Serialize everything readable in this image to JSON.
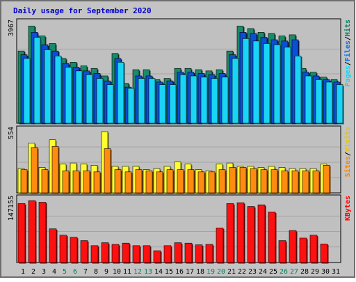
{
  "chart_data": {
    "type": "bar",
    "title": "Daily usage for September 2020",
    "categories": [
      "1",
      "2",
      "3",
      "4",
      "5",
      "6",
      "7",
      "8",
      "9",
      "10",
      "11",
      "12",
      "13",
      "14",
      "15",
      "16",
      "17",
      "18",
      "19",
      "20",
      "21",
      "22",
      "23",
      "24",
      "25",
      "26",
      "27",
      "28",
      "29",
      "30",
      "31"
    ],
    "weekend_days": [
      "5",
      "6",
      "12",
      "13",
      "19",
      "20",
      "26",
      "27"
    ],
    "panels": [
      {
        "id": "top",
        "max_label": "3967",
        "ymax": 3967,
        "legend": [
          {
            "text": "Pages",
            "color": "#00e0ff"
          },
          {
            "text": "/",
            "color": "#000000"
          },
          {
            "text": "Files",
            "color": "#0070ff"
          },
          {
            "text": "/",
            "color": "#000000"
          },
          {
            "text": "Hits",
            "color": "#008060"
          }
        ],
        "series": [
          {
            "name": "Hits",
            "color": "#1a8a68",
            "values": [
              2900,
              3900,
              3500,
              3200,
              2600,
              2450,
              2300,
              2200,
              1900,
              2800,
              1600,
              2150,
              2150,
              1750,
              1800,
              2200,
              2200,
              2150,
              2100,
              2150,
              2900,
              3900,
              3800,
              3650,
              3600,
              3500,
              3550,
              2200,
              2050,
              1850,
              1750
            ]
          },
          {
            "name": "Files",
            "color": "#0a4fd6",
            "values": [
              2750,
              3650,
              3150,
              2900,
              2400,
              2250,
              2100,
              2000,
              1700,
              2600,
              1450,
              1900,
              1900,
              1650,
              1700,
              2050,
              2050,
              2000,
              1950,
              2000,
              2750,
              3650,
              3600,
              3450,
              3350,
              3300,
              3350,
              2050,
              1900,
              1750,
              1650
            ]
          },
          {
            "name": "Pages",
            "color": "#19d4f5",
            "values": [
              2600,
              3450,
              2950,
              2700,
              2250,
              2100,
              1950,
              1800,
              1550,
              2450,
              1400,
              1800,
              1800,
              1550,
              1550,
              1950,
              1900,
              1850,
              1800,
              1850,
              2600,
              3400,
              3300,
              3200,
              3150,
              3050,
              2700,
              1900,
              1750,
              1650,
              1550
            ]
          }
        ]
      },
      {
        "id": "middle",
        "max_label": "554",
        "ymax": 554,
        "legend": [
          {
            "text": "Sites",
            "color": "#ff8000"
          },
          {
            "text": "/",
            "color": "#000000"
          },
          {
            "text": "Visits",
            "color": "#e6c400"
          }
        ],
        "series": [
          {
            "name": "Visits",
            "color": "#ffff30",
            "values": [
              220,
              450,
              230,
              480,
              260,
              270,
              260,
              250,
              554,
              240,
              240,
              240,
              210,
              220,
              240,
              280,
              260,
              210,
              200,
              260,
              270,
              240,
              240,
              230,
              240,
              230,
              220,
              220,
              220,
              260,
              0
            ]
          },
          {
            "name": "Sites",
            "color": "#ff8c10",
            "values": [
              210,
              410,
              210,
              420,
              200,
              200,
              200,
              190,
              400,
              210,
              190,
              210,
              200,
              190,
              210,
              210,
              210,
              190,
              190,
              210,
              230,
              230,
              220,
              210,
              210,
              200,
              200,
              200,
              200,
              250,
              0
            ]
          }
        ]
      },
      {
        "id": "bottom",
        "max_label": "147155",
        "ymax": 147155,
        "legend": [
          {
            "text": "KBytes",
            "color": "#ff0000"
          }
        ],
        "series": [
          {
            "name": "KBytes",
            "color": "#ff1010",
            "values": [
              140000,
              147000,
              143000,
              80000,
              65000,
              60000,
              52000,
              40000,
              47000,
              43000,
              46000,
              40000,
              40000,
              28000,
              40000,
              47000,
              46000,
              42000,
              43000,
              82000,
              140000,
              142000,
              133000,
              137000,
              120000,
              52000,
              76000,
              58000,
              65000,
              44000,
              0
            ]
          }
        ]
      }
    ]
  }
}
